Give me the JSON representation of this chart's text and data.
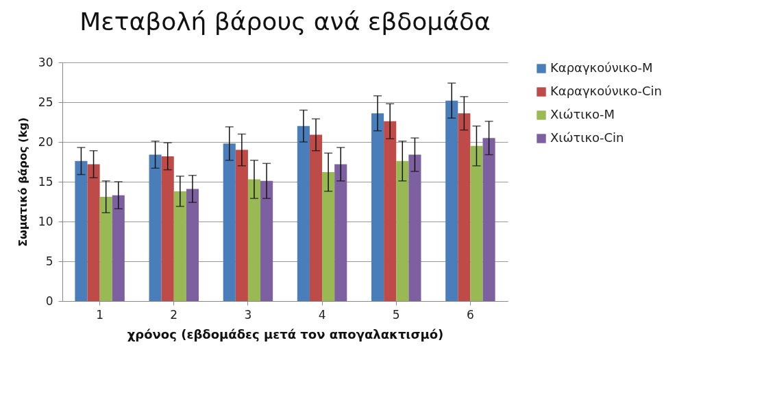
{
  "chart_data": {
    "type": "bar",
    "title": "Μεταβολή βάρους ανά εβδομάδα",
    "xlabel": "χρόνος (εβδομάδες μετά τον απογαλακτισμό)",
    "ylabel": "Σωματικό βάρος (kg)",
    "categories": [
      "1",
      "2",
      "3",
      "4",
      "5",
      "6"
    ],
    "ylim": [
      0,
      30
    ],
    "yticks": [
      0,
      5,
      10,
      15,
      20,
      25,
      30
    ],
    "grid": "y",
    "legend": "right",
    "series": [
      {
        "name": "Καραγκούνικο-M",
        "color": "#4a7ebb",
        "values": [
          17.6,
          18.4,
          19.8,
          22.0,
          23.6,
          25.2
        ],
        "errors": [
          1.7,
          1.7,
          2.1,
          2.0,
          2.2,
          2.2
        ]
      },
      {
        "name": "Καραγκούνικο-Cin",
        "color": "#be4b48",
        "values": [
          17.2,
          18.2,
          19.0,
          20.9,
          22.6,
          23.6
        ],
        "errors": [
          1.7,
          1.7,
          2.0,
          2.0,
          2.2,
          2.1
        ]
      },
      {
        "name": "Χιώτικο-M",
        "color": "#98b954",
        "values": [
          13.1,
          13.8,
          15.3,
          16.2,
          17.6,
          19.5
        ],
        "errors": [
          2.0,
          1.9,
          2.4,
          2.4,
          2.5,
          2.5
        ]
      },
      {
        "name": "Χιώτικο-Cin",
        "color": "#7d60a0",
        "values": [
          13.3,
          14.1,
          15.1,
          17.2,
          18.4,
          20.5
        ],
        "errors": [
          1.7,
          1.7,
          2.2,
          2.1,
          2.1,
          2.1
        ]
      }
    ]
  }
}
